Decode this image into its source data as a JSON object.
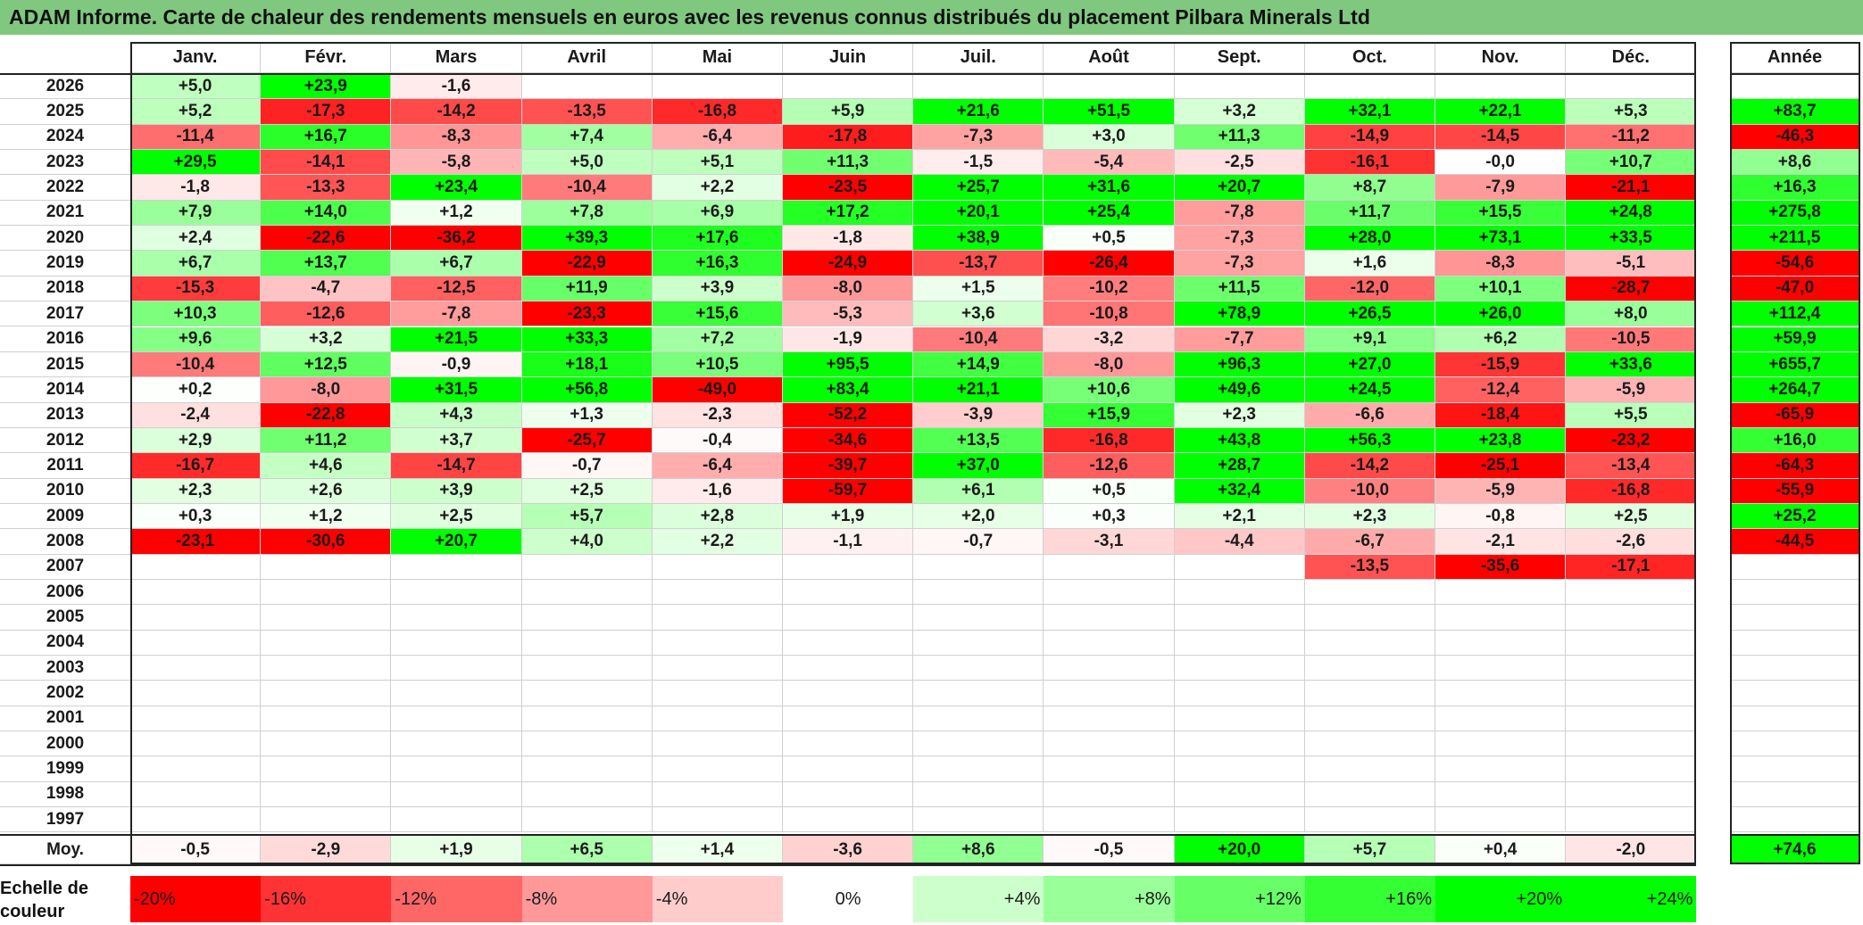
{
  "chart_data": {
    "type": "heatmap",
    "title": "ADAM Informe. Carte de chaleur des rendements mensuels en euros avec les revenus connus distribués du placement Pilbara Minerals Ltd",
    "columns": [
      "Janv.",
      "Févr.",
      "Mars",
      "Avril",
      "Mai",
      "Juin",
      "Juil.",
      "Août",
      "Sept.",
      "Oct.",
      "Nov.",
      "Déc."
    ],
    "year_column_label": "Année",
    "years": [
      "2026",
      "2025",
      "2024",
      "2023",
      "2022",
      "2021",
      "2020",
      "2019",
      "2018",
      "2017",
      "2016",
      "2015",
      "2014",
      "2013",
      "2012",
      "2011",
      "2010",
      "2009",
      "2008",
      "2007",
      "2006",
      "2005",
      "2004",
      "2003",
      "2002",
      "2001",
      "2000",
      "1999",
      "1998",
      "1997"
    ],
    "values": [
      [
        5.0,
        23.9,
        -1.6,
        null,
        null,
        null,
        null,
        null,
        null,
        null,
        null,
        null
      ],
      [
        5.2,
        -17.3,
        -14.2,
        -13.5,
        -16.8,
        5.9,
        21.6,
        51.5,
        3.2,
        32.1,
        22.1,
        5.3
      ],
      [
        -11.4,
        16.7,
        -8.3,
        7.4,
        -6.4,
        -17.8,
        -7.3,
        3.0,
        11.3,
        -14.9,
        -14.5,
        -11.2
      ],
      [
        29.5,
        -14.1,
        -5.8,
        5.0,
        5.1,
        11.3,
        -1.5,
        -5.4,
        -2.5,
        -16.1,
        -0.0,
        10.7
      ],
      [
        -1.8,
        -13.3,
        23.4,
        -10.4,
        2.2,
        -23.5,
        25.7,
        31.6,
        20.7,
        8.7,
        -7.9,
        -21.1
      ],
      [
        7.9,
        14.0,
        1.2,
        7.8,
        6.9,
        17.2,
        20.1,
        25.4,
        -7.8,
        11.7,
        15.5,
        24.8
      ],
      [
        2.4,
        -22.6,
        -36.2,
        39.3,
        17.6,
        -1.8,
        38.9,
        0.5,
        -7.3,
        28.0,
        73.1,
        33.5
      ],
      [
        6.7,
        13.7,
        6.7,
        -22.9,
        16.3,
        -24.9,
        -13.7,
        -26.4,
        -7.3,
        1.6,
        -8.3,
        -5.1
      ],
      [
        -15.3,
        -4.7,
        -12.5,
        11.9,
        3.9,
        -8.0,
        1.5,
        -10.2,
        11.5,
        -12.0,
        10.1,
        -28.7
      ],
      [
        10.3,
        -12.6,
        -7.8,
        -23.3,
        15.6,
        -5.3,
        3.6,
        -10.8,
        78.9,
        26.5,
        26.0,
        8.0
      ],
      [
        9.6,
        3.2,
        21.5,
        33.3,
        7.2,
        -1.9,
        -10.4,
        -3.2,
        -7.7,
        9.1,
        6.2,
        -10.5
      ],
      [
        -10.4,
        12.5,
        -0.9,
        18.1,
        10.5,
        95.5,
        14.9,
        -8.0,
        96.3,
        27.0,
        -15.9,
        33.6
      ],
      [
        0.2,
        -8.0,
        31.5,
        56.8,
        -49.0,
        83.4,
        21.1,
        10.6,
        49.6,
        24.5,
        -12.4,
        -5.9
      ],
      [
        -2.4,
        -22.8,
        4.3,
        1.3,
        -2.3,
        -52.2,
        -3.9,
        15.9,
        2.3,
        -6.6,
        -18.4,
        5.5
      ],
      [
        2.9,
        11.2,
        3.7,
        -25.7,
        -0.4,
        -34.6,
        13.5,
        -16.8,
        43.8,
        56.3,
        23.8,
        -23.2
      ],
      [
        -16.7,
        4.6,
        -14.7,
        -0.7,
        -6.4,
        -39.7,
        37.0,
        -12.6,
        28.7,
        -14.2,
        -25.1,
        -13.4
      ],
      [
        2.3,
        2.6,
        3.9,
        2.5,
        -1.6,
        -59.7,
        6.1,
        0.5,
        32.4,
        -10.0,
        -5.9,
        -16.8
      ],
      [
        0.3,
        1.2,
        2.5,
        5.7,
        2.8,
        1.9,
        2.0,
        0.3,
        2.1,
        2.3,
        -0.8,
        2.5
      ],
      [
        -23.1,
        -30.6,
        20.7,
        4.0,
        2.2,
        -1.1,
        -0.7,
        -3.1,
        -4.4,
        -6.7,
        -2.1,
        -2.6
      ],
      [
        null,
        null,
        null,
        null,
        null,
        null,
        null,
        null,
        null,
        -13.5,
        -35.6,
        -17.1
      ],
      [
        null,
        null,
        null,
        null,
        null,
        null,
        null,
        null,
        null,
        null,
        null,
        null
      ],
      [
        null,
        null,
        null,
        null,
        null,
        null,
        null,
        null,
        null,
        null,
        null,
        null
      ],
      [
        null,
        null,
        null,
        null,
        null,
        null,
        null,
        null,
        null,
        null,
        null,
        null
      ],
      [
        null,
        null,
        null,
        null,
        null,
        null,
        null,
        null,
        null,
        null,
        null,
        null
      ],
      [
        null,
        null,
        null,
        null,
        null,
        null,
        null,
        null,
        null,
        null,
        null,
        null
      ],
      [
        null,
        null,
        null,
        null,
        null,
        null,
        null,
        null,
        null,
        null,
        null,
        null
      ],
      [
        null,
        null,
        null,
        null,
        null,
        null,
        null,
        null,
        null,
        null,
        null,
        null
      ],
      [
        null,
        null,
        null,
        null,
        null,
        null,
        null,
        null,
        null,
        null,
        null,
        null
      ],
      [
        null,
        null,
        null,
        null,
        null,
        null,
        null,
        null,
        null,
        null,
        null,
        null
      ],
      [
        null,
        null,
        null,
        null,
        null,
        null,
        null,
        null,
        null,
        null,
        null,
        null
      ]
    ],
    "year_totals": [
      null,
      83.7,
      -46.3,
      8.6,
      16.3,
      275.8,
      211.5,
      -54.6,
      -47.0,
      112.4,
      59.9,
      655.7,
      264.7,
      -65.9,
      16.0,
      -64.3,
      -55.9,
      25.2,
      -44.5,
      null,
      null,
      null,
      null,
      null,
      null,
      null,
      null,
      null,
      null,
      null
    ],
    "average_label": "Moy.",
    "averages": [
      -0.5,
      -2.9,
      1.9,
      6.5,
      1.4,
      -3.6,
      8.6,
      -0.5,
      20.0,
      5.7,
      0.4,
      -2.0
    ],
    "average_total": 74.6,
    "scale_label": "Echelle de couleur",
    "scale_labels": [
      "-20%",
      "-16%",
      "-12%",
      "-8%",
      "-4%",
      "0%",
      "+4%",
      "+8%",
      "+12%",
      "+16%",
      "+20%",
      "+24%"
    ],
    "scale_values": [
      -20,
      -16,
      -12,
      -8,
      -4,
      0,
      4,
      8,
      12,
      16,
      20,
      24
    ],
    "colors": {
      "negative_max": "#ff0000",
      "positive_max": "#00ff00",
      "neutral": "#ffffff",
      "title_bar": "#80c880"
    }
  }
}
